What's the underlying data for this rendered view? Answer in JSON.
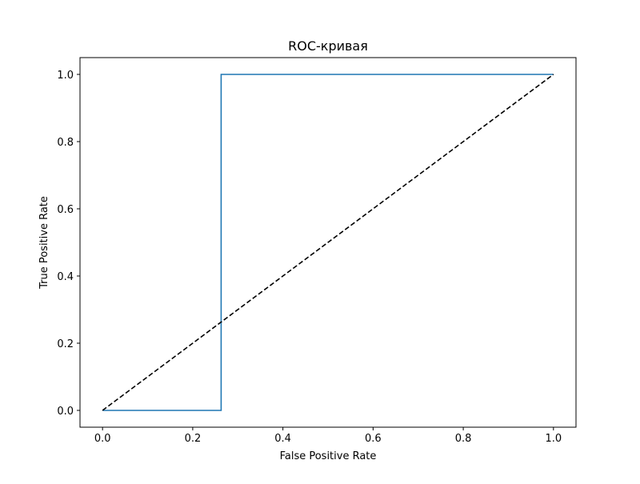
{
  "chart_data": {
    "type": "line",
    "title": "ROC-кривая",
    "xlabel": "False Positive Rate",
    "ylabel": "True Positive Rate",
    "xlim": [
      -0.05,
      1.05
    ],
    "ylim": [
      -0.05,
      1.05
    ],
    "xticks": [
      0.0,
      0.2,
      0.4,
      0.6,
      0.8,
      1.0
    ],
    "yticks": [
      0.0,
      0.2,
      0.4,
      0.6,
      0.8,
      1.0
    ],
    "xtick_labels": [
      "0.0",
      "0.2",
      "0.4",
      "0.6",
      "0.8",
      "1.0"
    ],
    "ytick_labels": [
      "0.0",
      "0.2",
      "0.4",
      "0.6",
      "0.8",
      "1.0"
    ],
    "grid": false,
    "legend": "none",
    "series": [
      {
        "style": "solid",
        "color": "#1f77b4",
        "x": [
          0.0,
          0.263,
          0.263,
          1.0
        ],
        "y": [
          0.0,
          0.0,
          1.0,
          1.0
        ]
      },
      {
        "style": "dashed",
        "color": "#000000",
        "x": [
          0.0,
          1.0
        ],
        "y": [
          0.0,
          1.0
        ]
      }
    ]
  }
}
